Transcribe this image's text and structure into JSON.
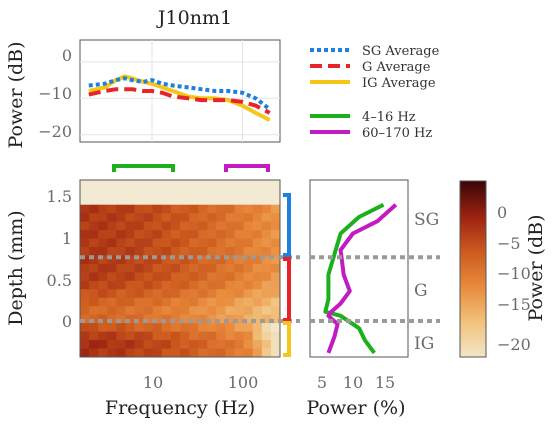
{
  "title": "J10nm1",
  "colors": {
    "sg": "#1e7fe0",
    "g": "#e8242a",
    "ig": "#f5c518",
    "low": "#1db01d",
    "high": "#c21bc2",
    "depth_line": "#9a9a9a",
    "axis_text": "#6b6b6b"
  },
  "chart_data": [
    {
      "id": "average_power",
      "type": "line",
      "ylabel": "Power (dB)",
      "ylim": [
        -22,
        6
      ],
      "yticks": [
        "0",
        "−10",
        "−20"
      ],
      "xscale": "log",
      "xlim": [
        1.6,
        260
      ],
      "grid": true,
      "legend_position": "right",
      "x": [
        2,
        3,
        4,
        5,
        6,
        8,
        10,
        13,
        17,
        25,
        35,
        50,
        70,
        100,
        140,
        200
      ],
      "series": [
        {
          "name": "SG Average",
          "style": "dotted",
          "color_key": "sg",
          "values": [
            -6.5,
            -6,
            -5,
            -4.5,
            -5,
            -5.5,
            -5,
            -6,
            -6.5,
            -7,
            -7.5,
            -8,
            -8,
            -8.5,
            -10,
            -13
          ]
        },
        {
          "name": "G Average",
          "style": "dashed",
          "color_key": "g",
          "values": [
            -9,
            -8,
            -7.5,
            -7.5,
            -7.5,
            -8,
            -8,
            -8.5,
            -9.5,
            -10,
            -10.5,
            -10.5,
            -10.5,
            -11,
            -12,
            -14
          ]
        },
        {
          "name": "IG Average",
          "style": "solid",
          "color_key": "ig",
          "values": [
            -8,
            -7,
            -5,
            -4,
            -4.5,
            -5.5,
            -6,
            -7,
            -8,
            -9.5,
            -10,
            -10,
            -10.5,
            -12,
            -14,
            -16
          ]
        }
      ],
      "band_legend": [
        {
          "name": "4–16 Hz",
          "color_key": "low"
        },
        {
          "name": "60–170 Hz",
          "color_key": "high"
        }
      ]
    },
    {
      "id": "depth_heatmap",
      "type": "heatmap",
      "xlabel": "Frequency (Hz)",
      "ylabel": "Depth (mm)",
      "xscale": "log",
      "xticks": [
        "10",
        "100"
      ],
      "yticks": [
        "0",
        "0.5",
        "1",
        "1.5"
      ],
      "ylim": [
        -0.5,
        1.65
      ],
      "data_top_depth": 1.35,
      "layer_boundaries": [
        0.75,
        0.0
      ],
      "band_brackets": [
        {
          "range": [
            4,
            16
          ],
          "color_key": "low"
        },
        {
          "range": [
            60,
            170
          ],
          "color_key": "high"
        }
      ],
      "layer_brackets": [
        {
          "layer": "SG",
          "range": [
            0.75,
            1.35
          ],
          "color_key": "sg"
        },
        {
          "layer": "G",
          "range": [
            0.0,
            0.75
          ],
          "color_key": "g"
        },
        {
          "layer": "IG",
          "range": [
            -0.5,
            0.0
          ],
          "color_key": "ig"
        }
      ]
    },
    {
      "id": "band_power_profile",
      "type": "line",
      "xlabel": "Power (%)",
      "xticks": [
        "5",
        "10",
        "15"
      ],
      "xlim": [
        2,
        18
      ],
      "layer_labels": [
        "SG",
        "G",
        "IG"
      ],
      "series": [
        {
          "name": "4–16 Hz",
          "color_key": "low",
          "points": [
            [
              14,
              1.35
            ],
            [
              10,
              1.2
            ],
            [
              7,
              1.0
            ],
            [
              6,
              0.75
            ],
            [
              5,
              0.5
            ],
            [
              5,
              0.2
            ],
            [
              4.5,
              0.05
            ],
            [
              7,
              0.0
            ],
            [
              10,
              -0.15
            ],
            [
              11,
              -0.3
            ],
            [
              12.5,
              -0.45
            ]
          ]
        },
        {
          "name": "60–170 Hz",
          "color_key": "high",
          "points": [
            [
              16,
              1.35
            ],
            [
              13,
              1.15
            ],
            [
              9,
              1.0
            ],
            [
              7,
              0.8
            ],
            [
              7.5,
              0.5
            ],
            [
              8.5,
              0.3
            ],
            [
              7,
              0.15
            ],
            [
              5.5,
              0.05
            ],
            [
              5,
              0.0
            ],
            [
              6.5,
              -0.1
            ],
            [
              6,
              -0.25
            ],
            [
              5,
              -0.45
            ]
          ]
        }
      ]
    },
    {
      "id": "colorbar",
      "type": "colorbar",
      "label": "Power (dB)",
      "range": [
        -22,
        3
      ],
      "ticks": [
        "0",
        "−5",
        "−10",
        "−15",
        "−20"
      ]
    }
  ]
}
